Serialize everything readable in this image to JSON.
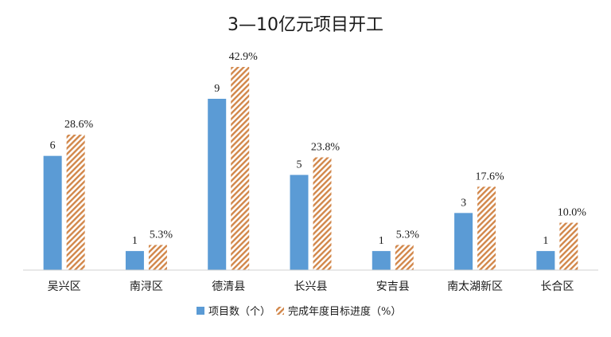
{
  "chart_data": {
    "type": "bar",
    "title": "3—10亿元项目开工",
    "categories": [
      "吴兴区",
      "南浔区",
      "德清县",
      "长兴县",
      "安吉县",
      "南太湖新区",
      "长合区"
    ],
    "series": [
      {
        "name": "项目数（个）",
        "values": [
          6,
          1,
          9,
          5,
          1,
          3,
          1
        ],
        "labels": [
          "6",
          "1",
          "9",
          "5",
          "1",
          "3",
          "1"
        ],
        "color": "#5B9BD5",
        "pattern": "solid"
      },
      {
        "name": "完成年度目标进度（%）",
        "values": [
          28.6,
          5.3,
          42.9,
          23.8,
          5.3,
          17.6,
          10.0
        ],
        "labels": [
          "28.6%",
          "5.3%",
          "42.9%",
          "23.8%",
          "5.3%",
          "17.6%",
          "10.0%"
        ],
        "color": "#D2874A",
        "pattern": "diagonal-stripes"
      }
    ],
    "legend_position": "bottom",
    "grid": false
  }
}
